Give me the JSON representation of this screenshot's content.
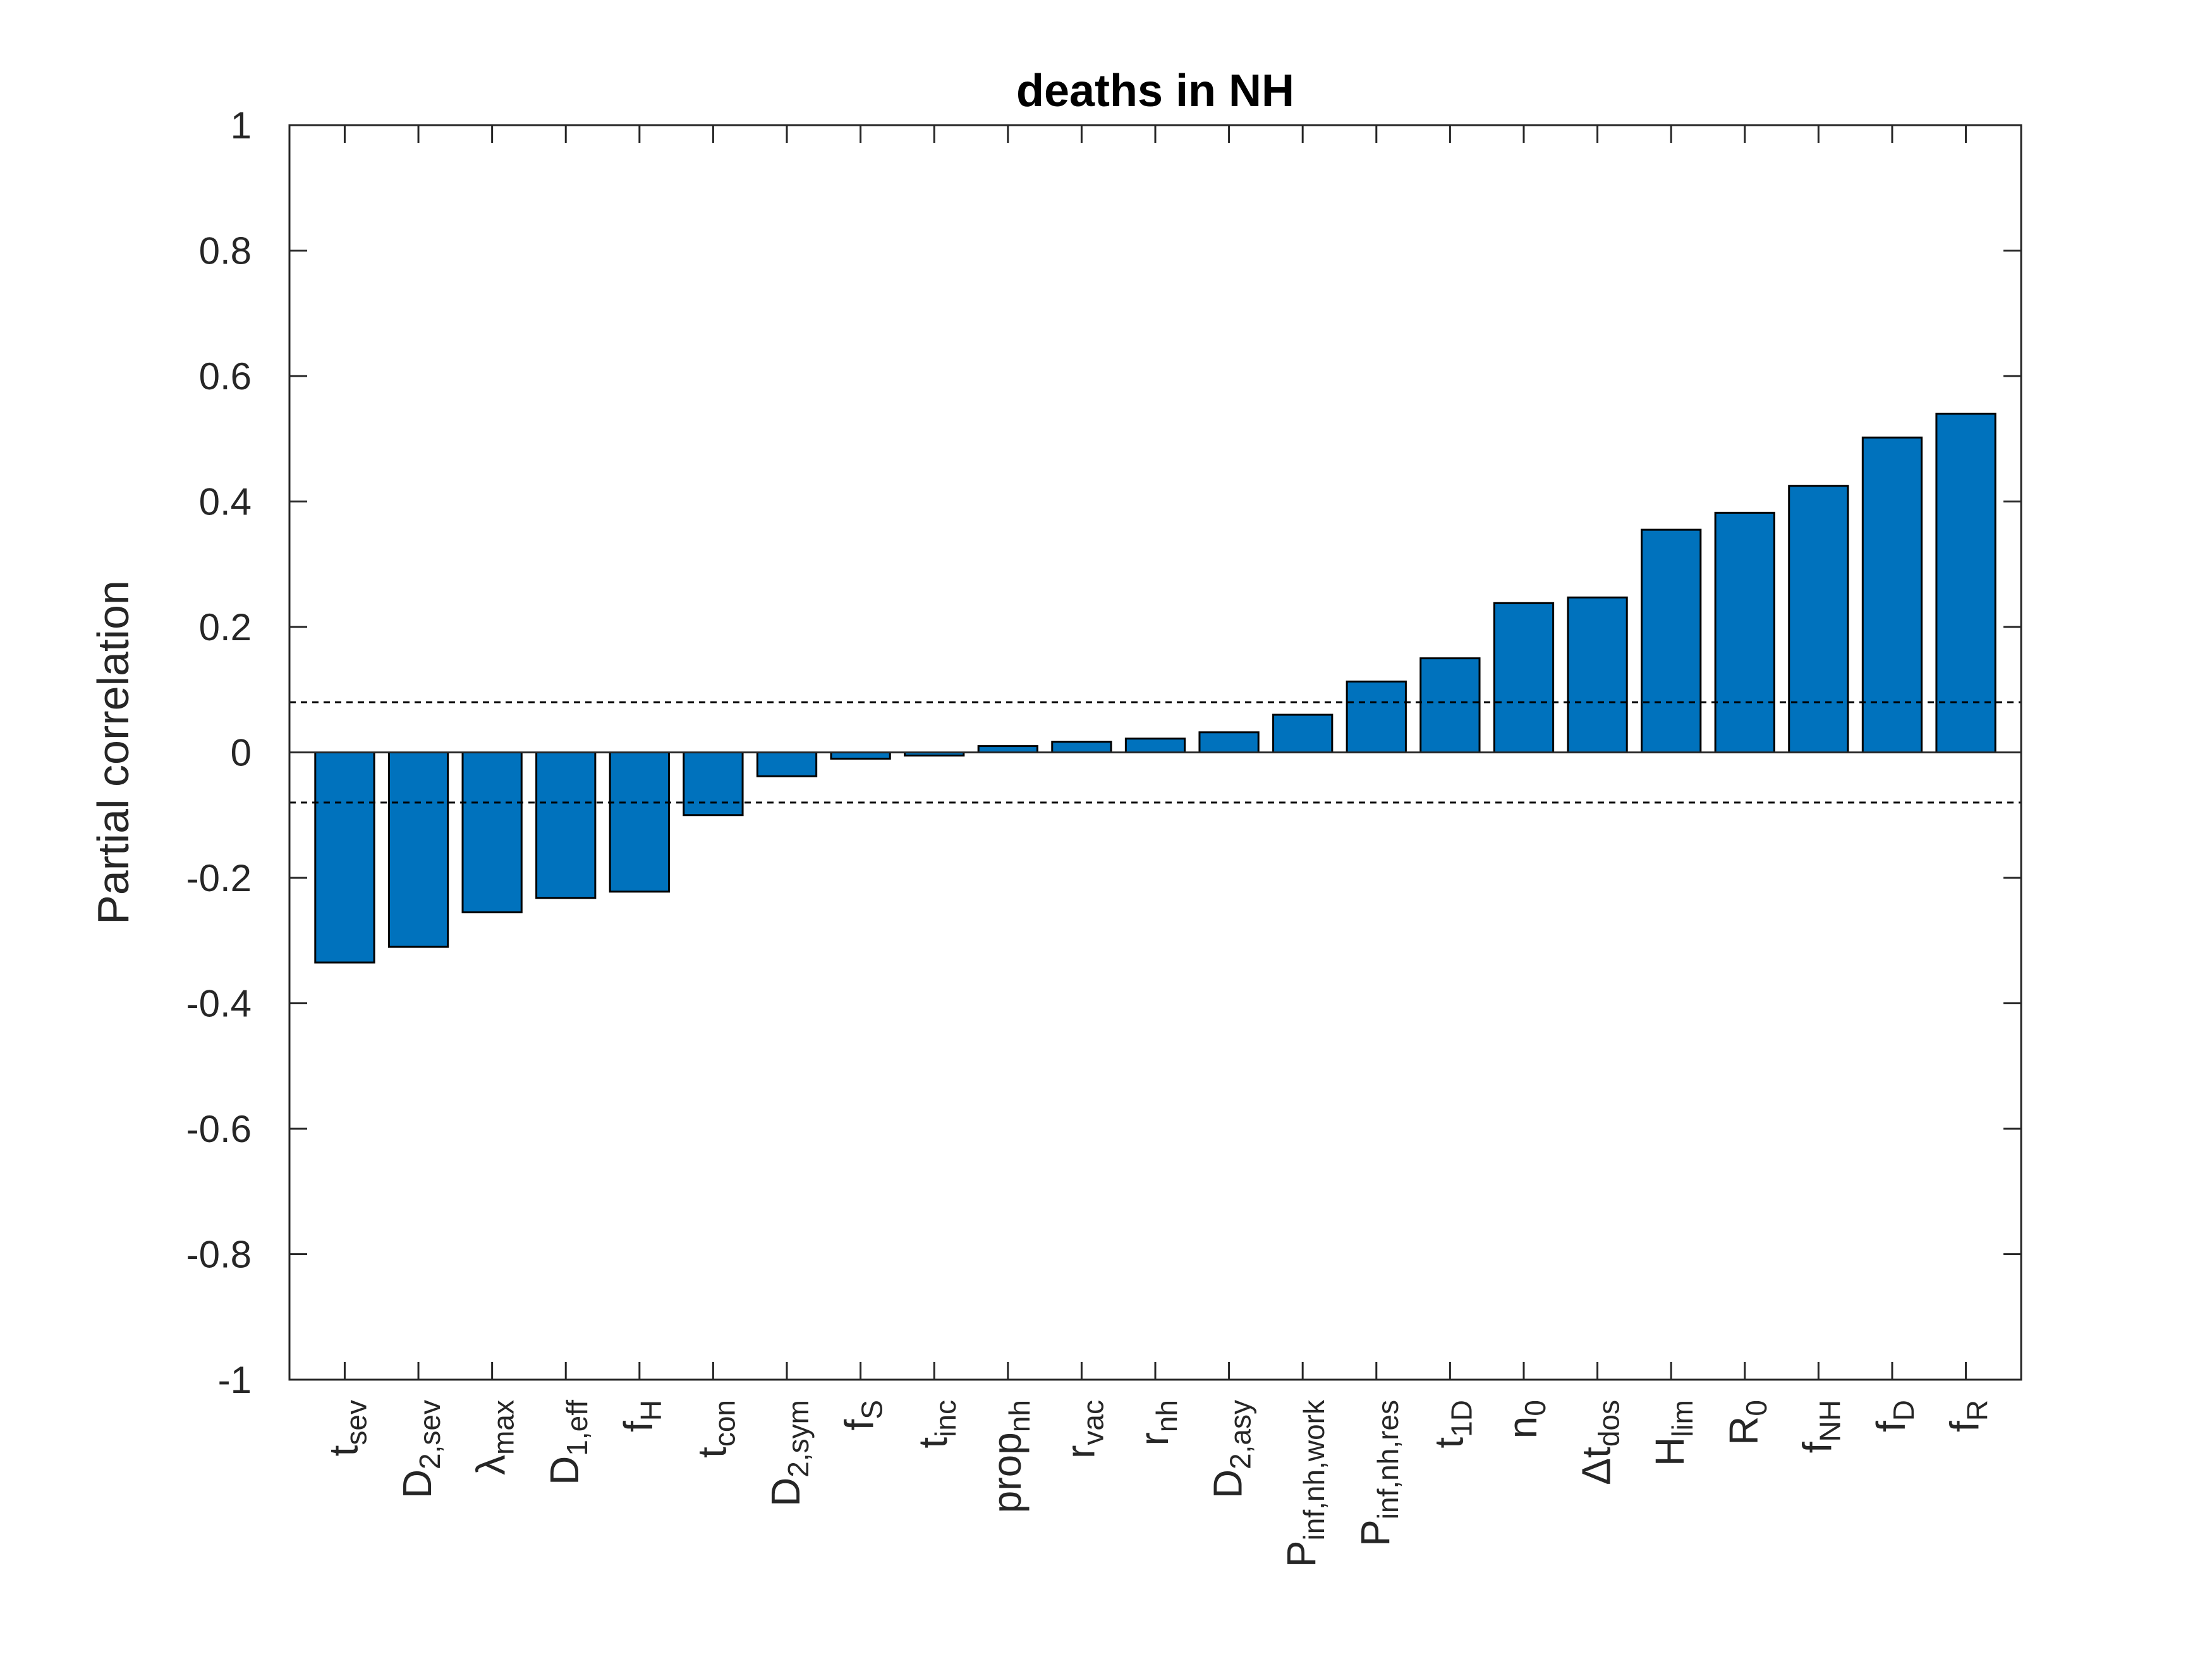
{
  "chart_data": {
    "type": "bar",
    "title": "deaths in NH",
    "ylabel": "Partial correlation",
    "xlabel": "",
    "ylim": [
      -1,
      1
    ],
    "yticks": [
      "-1",
      "-0.8",
      "-0.6",
      "-0.4",
      "-0.2",
      "0",
      "0.2",
      "0.4",
      "0.6",
      "0.8",
      "1"
    ],
    "categories": [
      {
        "main": "t",
        "sub": "sev"
      },
      {
        "main": "D",
        "sub": "2,sev"
      },
      {
        "main": "λ",
        "sub": "max"
      },
      {
        "main": "D",
        "sub": "1,eff"
      },
      {
        "main": "f",
        "sub": "H"
      },
      {
        "main": "t",
        "sub": "con"
      },
      {
        "main": "D",
        "sub": "2,sym"
      },
      {
        "main": "f",
        "sub": "S"
      },
      {
        "main": "t",
        "sub": "inc"
      },
      {
        "main": "prop",
        "sub": "nh"
      },
      {
        "main": "r",
        "sub": "vac"
      },
      {
        "main": "r",
        "sub": "nh"
      },
      {
        "main": "D",
        "sub": "2,asy"
      },
      {
        "main": "P",
        "sub": "inf,nh,work"
      },
      {
        "main": "P",
        "sub": "inf,nh,res"
      },
      {
        "main": "t",
        "sub": "1D"
      },
      {
        "main": "n",
        "sub": "0"
      },
      {
        "main": "Δt",
        "sub": "dos"
      },
      {
        "main": "H",
        "sub": "lim"
      },
      {
        "main": "R",
        "sub": "0"
      },
      {
        "main": "f",
        "sub": "NH"
      },
      {
        "main": "f",
        "sub": "D"
      },
      {
        "main": "f",
        "sub": "R"
      }
    ],
    "values": [
      -0.335,
      -0.31,
      -0.255,
      -0.232,
      -0.222,
      -0.1,
      -0.038,
      -0.01,
      -0.005,
      0.01,
      0.017,
      0.022,
      0.032,
      0.06,
      0.113,
      0.15,
      0.238,
      0.247,
      0.355,
      0.382,
      0.425,
      0.502,
      0.54
    ],
    "reference_lines": [
      0.08,
      -0.08
    ],
    "bar_color": "#0072BD",
    "grid": false
  }
}
